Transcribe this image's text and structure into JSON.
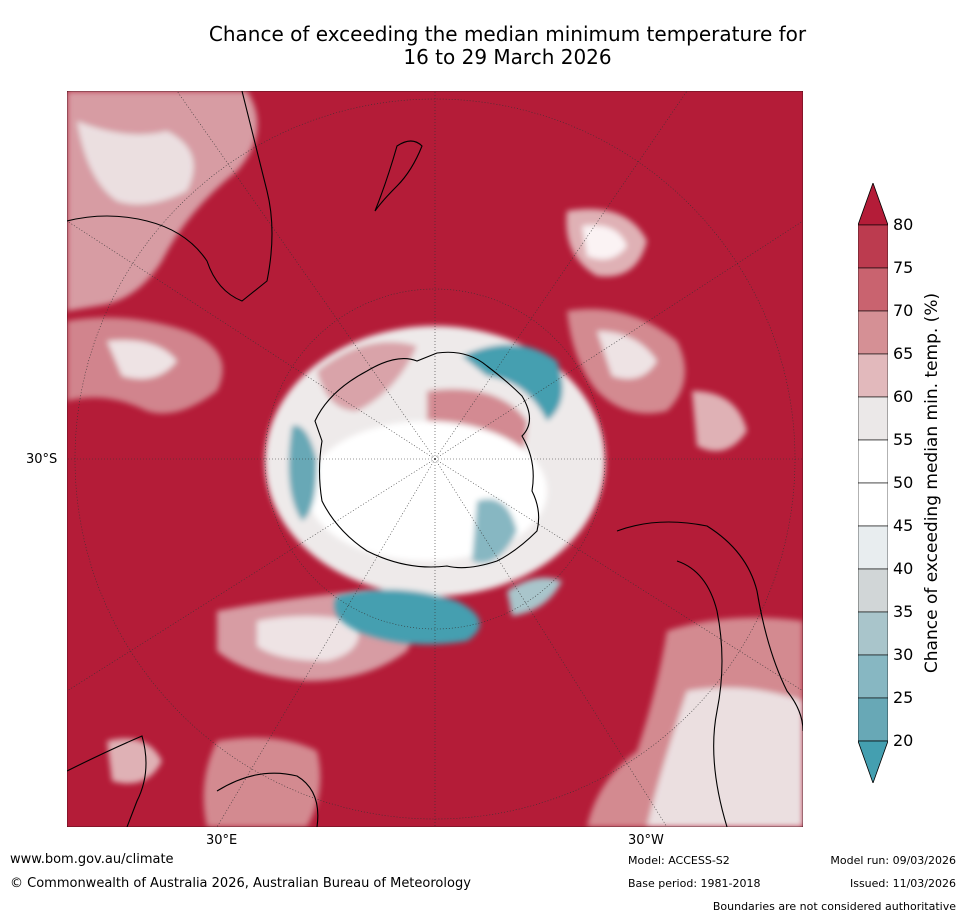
{
  "title_line1": "Chance of exceeding the median minimum temperature for",
  "title_line2": "16 to 29 March 2026",
  "map": {
    "projection": "south-polar-stereographic",
    "lat_label": "30°S",
    "lon_labels": {
      "east": "30°E",
      "west": "30°W"
    },
    "dominant_category": "80",
    "colors": {
      "above80": "#b41c38",
      "low20": "#449fb0",
      "near50": "#ffffff",
      "land_border": "#000000"
    }
  },
  "colorbar": {
    "title": "Chance of exceeding median min. temp. (%)",
    "ticks": [
      "80",
      "75",
      "70",
      "65",
      "60",
      "55",
      "50",
      "45",
      "40",
      "35",
      "30",
      "25",
      "20"
    ],
    "colors": [
      "#bc3b4f",
      "#c9636f",
      "#d59095",
      "#e2b9bc",
      "#ebe8e8",
      "#ffffff",
      "#ffffff",
      "#e8edef",
      "#d1d6d7",
      "#a9c5cb",
      "#87b7c2",
      "#68a8b6"
    ],
    "top_color": "#b41c38",
    "bottom_color": "#449fb0"
  },
  "footer": {
    "url": "www.bom.gov.au/climate",
    "copyright": "© Commonwealth of Australia 2026, Australian Bureau of Meteorology",
    "model": "Model: ACCESS-S2",
    "base_period": "Base period: 1981-2018",
    "model_run": "Model run: 09/03/2026",
    "issued": "Issued: 11/03/2026",
    "disclaimer": "Boundaries are not considered authoritative"
  }
}
